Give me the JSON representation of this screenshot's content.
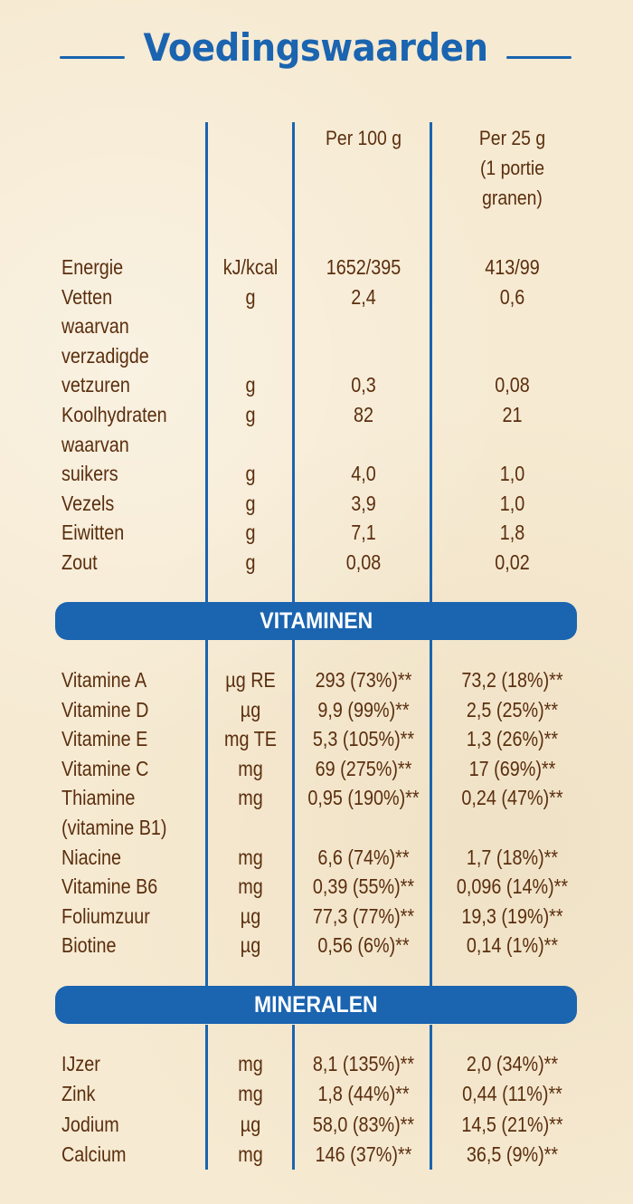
{
  "title": "Voedingswaarden",
  "header": {
    "per100": "Per 100 g",
    "per25_line1": "Per 25 g",
    "per25_line2": "(1 portie",
    "per25_line3": "granen)"
  },
  "nutrients": [
    {
      "name": "Energie",
      "unit": "kJ/kcal",
      "per100": "1652/395",
      "per25": "413/99"
    },
    {
      "name": "Vetten",
      "unit": "g",
      "per100": "2,4",
      "per25": "0,6"
    },
    {
      "name": "waarvan",
      "unit": "",
      "per100": "",
      "per25": ""
    },
    {
      "name": "verzadigde",
      "unit": "",
      "per100": "",
      "per25": ""
    },
    {
      "name": "vetzuren",
      "unit": "g",
      "per100": "0,3",
      "per25": "0,08"
    },
    {
      "name": "Koolhydraten",
      "unit": "g",
      "per100": "82",
      "per25": "21"
    },
    {
      "name": "waarvan",
      "unit": "",
      "per100": "",
      "per25": ""
    },
    {
      "name": "suikers",
      "unit": "g",
      "per100": "4,0",
      "per25": "1,0"
    },
    {
      "name": "Vezels",
      "unit": "g",
      "per100": "3,9",
      "per25": "1,0"
    },
    {
      "name": "Eiwitten",
      "unit": "g",
      "per100": "7,1",
      "per25": "1,8"
    },
    {
      "name": "Zout",
      "unit": "g",
      "per100": "0,08",
      "per25": "0,02"
    }
  ],
  "vitamins_label": "VITAMINEN",
  "vitamins": [
    {
      "name": "Vitamine A",
      "unit": "µg RE",
      "per100": "293 (73%)**",
      "per25": "73,2 (18%)**"
    },
    {
      "name": "Vitamine D",
      "unit": "µg",
      "per100": "9,9 (99%)**",
      "per25": "2,5 (25%)**"
    },
    {
      "name": "Vitamine E",
      "unit": "mg TE",
      "per100": "5,3 (105%)**",
      "per25": "1,3 (26%)**"
    },
    {
      "name": "Vitamine C",
      "unit": "mg",
      "per100": "69 (275%)**",
      "per25": "17 (69%)**"
    },
    {
      "name": "Thiamine",
      "unit": "mg",
      "per100": "0,95 (190%)**",
      "per25": "0,24 (47%)**"
    },
    {
      "name": "(vitamine B1)",
      "unit": "",
      "per100": "",
      "per25": ""
    },
    {
      "name": "Niacine",
      "unit": "mg",
      "per100": "6,6 (74%)**",
      "per25": "1,7 (18%)**"
    },
    {
      "name": "Vitamine B6",
      "unit": "mg",
      "per100": "0,39 (55%)**",
      "per25": "0,096 (14%)**"
    },
    {
      "name": "Foliumzuur",
      "unit": "µg",
      "per100": "77,3 (77%)**",
      "per25": "19,3 (19%)**"
    },
    {
      "name": "Biotine",
      "unit": "µg",
      "per100": "0,56 (6%)**",
      "per25": "0,14 (1%)**"
    }
  ],
  "minerals_label": "MINERALEN",
  "minerals": [
    {
      "name": "IJzer",
      "unit": "mg",
      "per100": "8,1 (135%)**",
      "per25": "2,0 (34%)**"
    },
    {
      "name": "Zink",
      "unit": "mg",
      "per100": "1,8 (44%)**",
      "per25": "0,44 (11%)**"
    },
    {
      "name": "Jodium",
      "unit": "µg",
      "per100": "58,0 (83%)**",
      "per25": "14,5 (21%)**"
    },
    {
      "name": "Calcium",
      "unit": "mg",
      "per100": "146 (37%)**",
      "per25": "36,5 (9%)**"
    }
  ],
  "colors": {
    "accent": "#1a64b0",
    "text": "#5a2e0e",
    "background": "#f6ead2"
  }
}
